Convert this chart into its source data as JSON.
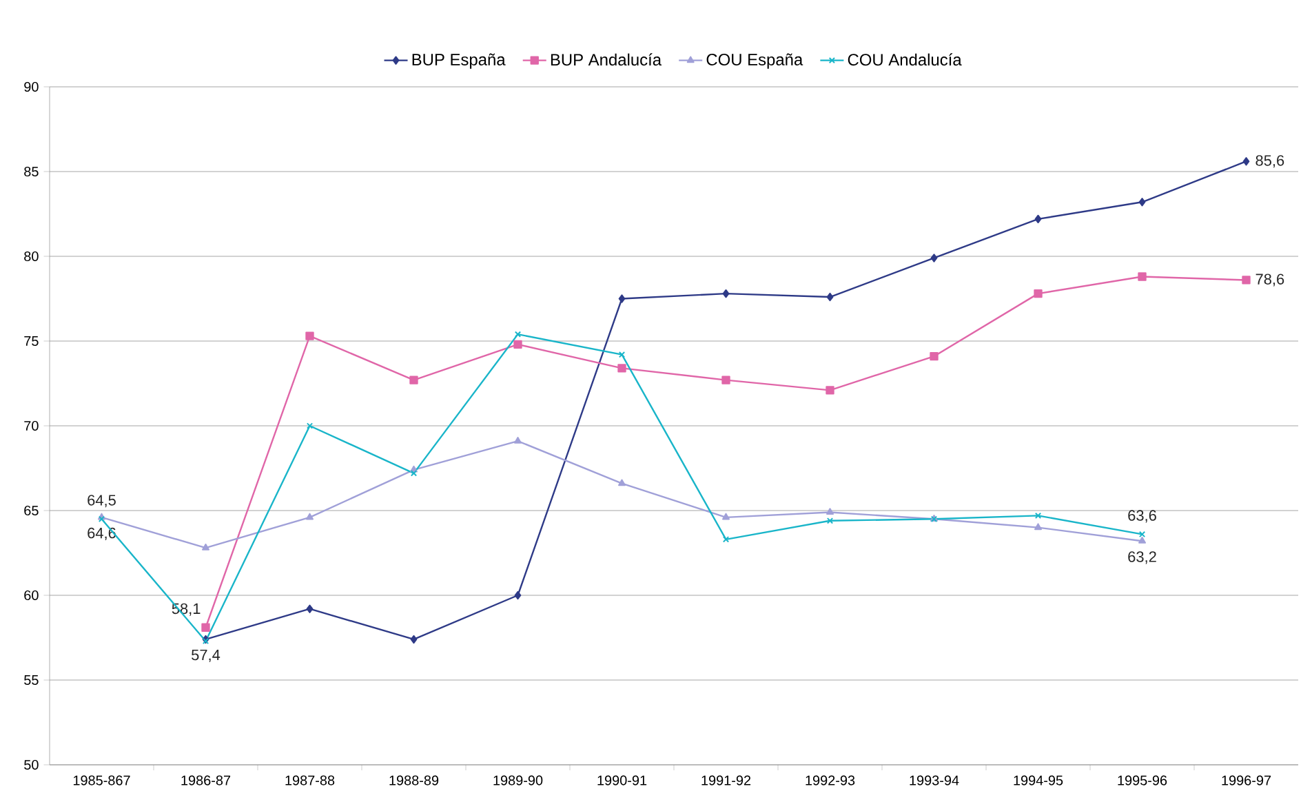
{
  "chart_data": {
    "type": "line",
    "categories": [
      "1985-867",
      "1986-87",
      "1987-88",
      "1988-89",
      "1989-90",
      "1990-91",
      "1991-92",
      "1992-93",
      "1993-94",
      "1994-95",
      "1995-96",
      "1996-97"
    ],
    "series": [
      {
        "name": "BUP España",
        "color": "#2e3a87",
        "marker": "diamond",
        "values": [
          null,
          57.4,
          59.2,
          57.4,
          60.0,
          77.5,
          77.8,
          77.6,
          79.9,
          82.2,
          83.2,
          85.6
        ],
        "value_labels": [
          null,
          "57,4",
          null,
          null,
          null,
          null,
          null,
          null,
          null,
          null,
          null,
          "85,6"
        ]
      },
      {
        "name": "BUP Andalucía",
        "color": "#e066a8",
        "marker": "square",
        "values": [
          null,
          58.1,
          75.3,
          72.7,
          74.8,
          73.4,
          72.7,
          72.1,
          74.1,
          77.8,
          78.8,
          78.6
        ],
        "value_labels": [
          null,
          "58,1",
          null,
          null,
          null,
          null,
          null,
          null,
          null,
          null,
          null,
          "78,6"
        ]
      },
      {
        "name": "COU España",
        "color": "#a0a0d8",
        "marker": "triangle",
        "values": [
          64.6,
          62.8,
          64.6,
          67.4,
          69.1,
          66.6,
          64.6,
          64.9,
          64.5,
          64.0,
          63.2,
          null
        ],
        "value_labels": [
          "64,6",
          null,
          null,
          null,
          null,
          null,
          null,
          null,
          null,
          null,
          "63,2",
          null
        ]
      },
      {
        "name": "COU Andalucía",
        "color": "#19b5c9",
        "marker": "cross",
        "values": [
          64.5,
          57.3,
          70.0,
          67.2,
          75.4,
          74.2,
          63.3,
          64.4,
          64.5,
          64.7,
          63.6,
          null
        ],
        "value_labels": [
          "64,5",
          null,
          null,
          null,
          null,
          null,
          null,
          null,
          null,
          null,
          "63,6",
          null
        ]
      }
    ],
    "ylim": [
      50,
      90
    ],
    "yticks": [
      50,
      55,
      60,
      65,
      70,
      75,
      80,
      85,
      90
    ],
    "grid": "y",
    "legend": "top"
  }
}
